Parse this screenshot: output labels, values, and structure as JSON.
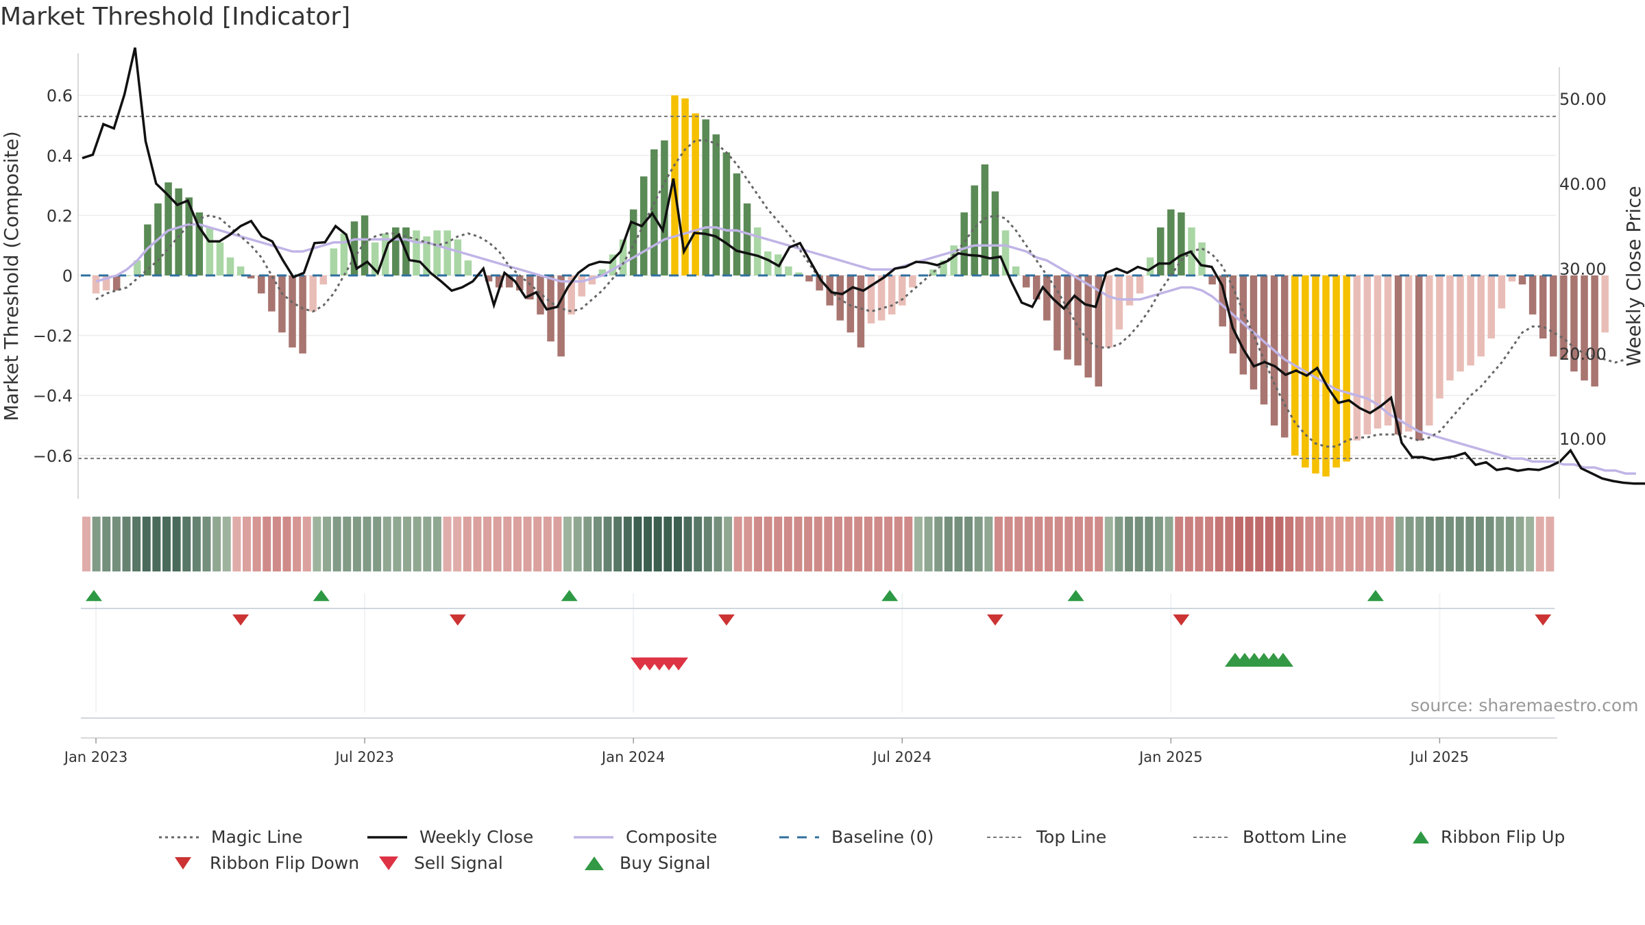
{
  "title": "Market Threshold [Indicator]",
  "source_note": "source: sharemaestro.com",
  "chart_data": {
    "type": "bar",
    "title": "Market Threshold [Indicator]",
    "ylabel_left": "Market Threshold (Composite)",
    "ylabel_right": "Weekly Close Price",
    "ylim_left": [
      -0.74,
      0.74
    ],
    "ylim_right": [
      3.5,
      55.0
    ],
    "left_ticks": [
      0.6,
      0.4,
      0.2,
      0,
      -0.2,
      -0.4,
      -0.6
    ],
    "left_tick_labels": [
      "0.6",
      "0.4",
      "0.2",
      "0",
      "−0.2",
      "−0.4",
      "−0.6"
    ],
    "right_ticks": [
      50,
      40,
      30,
      20,
      10
    ],
    "right_tick_labels": [
      "50.00",
      "40.00",
      "30.00",
      "20.00",
      "10.00"
    ],
    "x_tick_labels": [
      "Jan 2023",
      "Jul 2023",
      "Jan 2024",
      "Jul 2024",
      "Jan 2025",
      "Jul 2025"
    ],
    "x_tick_weeks": [
      0,
      26,
      52,
      78,
      104,
      130
    ],
    "x_range_weeks": [
      -1.5,
      141
    ],
    "top_line": 0.53,
    "bottom_line": -0.61,
    "baseline": 0,
    "composite_bars": [
      -0.06,
      -0.05,
      -0.05,
      0.0,
      0.05,
      0.17,
      0.24,
      0.31,
      0.29,
      0.26,
      0.21,
      0.16,
      0.11,
      0.06,
      0.03,
      -0.01,
      -0.06,
      -0.12,
      -0.19,
      -0.24,
      -0.26,
      -0.12,
      -0.03,
      0.09,
      0.14,
      0.18,
      0.2,
      0.11,
      0.14,
      0.16,
      0.16,
      0.15,
      0.13,
      0.15,
      0.15,
      0.12,
      0.05,
      0.0,
      -0.02,
      -0.04,
      -0.04,
      -0.05,
      -0.08,
      -0.13,
      -0.22,
      -0.27,
      -0.13,
      -0.07,
      -0.03,
      0.02,
      0.07,
      0.12,
      0.22,
      0.33,
      0.42,
      0.45,
      0.6,
      0.59,
      0.54,
      0.52,
      0.47,
      0.41,
      0.34,
      0.24,
      0.16,
      0.08,
      0.07,
      0.03,
      0.01,
      -0.02,
      -0.05,
      -0.1,
      -0.15,
      -0.19,
      -0.24,
      -0.16,
      -0.15,
      -0.13,
      -0.1,
      -0.04,
      0.0,
      0.02,
      0.05,
      0.1,
      0.21,
      0.3,
      0.37,
      0.28,
      0.15,
      0.03,
      -0.04,
      -0.08,
      -0.15,
      -0.25,
      -0.28,
      -0.3,
      -0.34,
      -0.37,
      -0.24,
      -0.18,
      -0.1,
      -0.06,
      0.06,
      0.16,
      0.22,
      0.21,
      0.16,
      0.11,
      -0.03,
      -0.17,
      -0.26,
      -0.33,
      -0.38,
      -0.43,
      -0.5,
      -0.54,
      -0.6,
      -0.64,
      -0.66,
      -0.67,
      -0.64,
      -0.62,
      -0.55,
      -0.53,
      -0.51,
      -0.5,
      -0.53,
      -0.52,
      -0.55,
      -0.5,
      -0.41,
      -0.35,
      -0.32,
      -0.3,
      -0.27,
      -0.21,
      -0.11,
      -0.02,
      -0.03,
      -0.13,
      -0.21,
      -0.27,
      -0.28,
      -0.32,
      -0.35,
      -0.37,
      -0.19
    ],
    "composite_line": [
      -0.02,
      -0.01,
      0.0,
      0.02,
      0.05,
      0.09,
      0.12,
      0.15,
      0.16,
      0.17,
      0.17,
      0.16,
      0.15,
      0.14,
      0.13,
      0.12,
      0.11,
      0.1,
      0.09,
      0.08,
      0.08,
      0.09,
      0.1,
      0.11,
      0.11,
      0.12,
      0.12,
      0.12,
      0.12,
      0.12,
      0.12,
      0.11,
      0.11,
      0.1,
      0.09,
      0.08,
      0.07,
      0.06,
      0.05,
      0.04,
      0.03,
      0.02,
      0.01,
      0.0,
      -0.01,
      -0.02,
      -0.02,
      -0.02,
      -0.01,
      0.0,
      0.02,
      0.04,
      0.06,
      0.08,
      0.1,
      0.12,
      0.13,
      0.14,
      0.15,
      0.16,
      0.16,
      0.15,
      0.15,
      0.14,
      0.13,
      0.12,
      0.11,
      0.1,
      0.09,
      0.08,
      0.07,
      0.06,
      0.05,
      0.04,
      0.03,
      0.02,
      0.02,
      0.02,
      0.03,
      0.04,
      0.05,
      0.06,
      0.07,
      0.08,
      0.09,
      0.1,
      0.1,
      0.1,
      0.1,
      0.09,
      0.08,
      0.06,
      0.05,
      0.03,
      0.01,
      -0.01,
      -0.03,
      -0.05,
      -0.07,
      -0.08,
      -0.08,
      -0.08,
      -0.07,
      -0.06,
      -0.05,
      -0.04,
      -0.04,
      -0.05,
      -0.07,
      -0.1,
      -0.13,
      -0.16,
      -0.19,
      -0.22,
      -0.25,
      -0.28,
      -0.3,
      -0.32,
      -0.34,
      -0.36,
      -0.38,
      -0.39,
      -0.4,
      -0.41,
      -0.43,
      -0.46,
      -0.48,
      -0.5,
      -0.52,
      -0.53,
      -0.54,
      -0.55,
      -0.56,
      -0.57,
      -0.58,
      -0.59,
      -0.6,
      -0.61,
      -0.61,
      -0.62,
      -0.62,
      -0.62,
      -0.63,
      -0.63,
      -0.64,
      -0.64,
      -0.65,
      -0.65,
      -0.66,
      -0.66
    ],
    "magic_line": [
      -0.08,
      -0.06,
      -0.05,
      -0.04,
      -0.01,
      0.02,
      0.05,
      0.09,
      0.13,
      0.17,
      0.19,
      0.2,
      0.19,
      0.16,
      0.13,
      0.1,
      0.06,
      0.0,
      -0.06,
      -0.09,
      -0.11,
      -0.12,
      -0.1,
      -0.06,
      0.0,
      0.06,
      0.11,
      0.13,
      0.14,
      0.14,
      0.13,
      0.12,
      0.11,
      0.1,
      0.11,
      0.13,
      0.14,
      0.13,
      0.11,
      0.08,
      0.03,
      0.0,
      -0.03,
      -0.06,
      -0.09,
      -0.11,
      -0.12,
      -0.11,
      -0.08,
      -0.05,
      -0.01,
      0.04,
      0.1,
      0.17,
      0.24,
      0.31,
      0.37,
      0.42,
      0.45,
      0.45,
      0.44,
      0.41,
      0.37,
      0.32,
      0.27,
      0.22,
      0.18,
      0.14,
      0.09,
      0.04,
      -0.01,
      -0.05,
      -0.08,
      -0.1,
      -0.11,
      -0.12,
      -0.11,
      -0.1,
      -0.08,
      -0.05,
      -0.02,
      0.01,
      0.04,
      0.07,
      0.11,
      0.16,
      0.19,
      0.2,
      0.19,
      0.15,
      0.1,
      0.05,
      0.0,
      -0.05,
      -0.11,
      -0.17,
      -0.22,
      -0.24,
      -0.24,
      -0.23,
      -0.2,
      -0.16,
      -0.11,
      -0.05,
      0.0,
      0.05,
      0.08,
      0.09,
      0.07,
      0.03,
      -0.04,
      -0.12,
      -0.2,
      -0.28,
      -0.36,
      -0.43,
      -0.49,
      -0.53,
      -0.56,
      -0.57,
      -0.57,
      -0.55,
      -0.54,
      -0.54,
      -0.53,
      -0.53,
      -0.53,
      -0.54,
      -0.55,
      -0.54,
      -0.52,
      -0.48,
      -0.44,
      -0.4,
      -0.37,
      -0.33,
      -0.29,
      -0.24,
      -0.19,
      -0.17,
      -0.17,
      -0.19,
      -0.21,
      -0.24,
      -0.26,
      -0.27,
      -0.28,
      -0.29,
      -0.28
    ],
    "weekly_close": [
      43,
      43.4,
      47,
      46.5,
      50.5,
      56,
      45,
      40,
      38.8,
      37.5,
      38,
      35,
      33.2,
      33.2,
      34,
      35,
      35.6,
      33.8,
      33.2,
      31,
      29,
      29.5,
      33,
      33.1,
      35,
      34,
      30,
      30.8,
      29.5,
      33,
      34,
      31,
      30.8,
      29.5,
      28.5,
      27.4,
      27.8,
      28.5,
      30,
      25.7,
      29.5,
      28.5,
      26.6,
      27.2,
      25.2,
      25.5,
      27.8,
      29.5,
      30.4,
      30.8,
      30.7,
      32,
      35.5,
      35,
      36.5,
      34.5,
      40.6,
      32,
      34.2,
      34.1,
      33.8,
      33,
      32.1,
      31.8,
      31.5,
      31,
      30.3,
      32.5,
      33,
      30.8,
      28.6,
      27.2,
      27,
      27.8,
      27.4,
      28.2,
      29,
      30,
      30.2,
      30.8,
      30.7,
      30.4,
      30.9,
      31.8,
      31.6,
      31.5,
      31.2,
      31.4,
      28.5,
      26,
      25.5,
      27.8,
      26.4,
      25.3,
      26.8,
      25.8,
      25.5,
      29.5,
      30,
      29.5,
      30.2,
      29.8,
      30.6,
      30.6,
      31.5,
      32,
      30.4,
      30.2,
      28,
      23,
      20.5,
      18.5,
      19,
      18.5,
      17.5,
      18,
      17.4,
      18.3,
      16,
      14.2,
      14.5,
      13.6,
      13,
      13.8,
      14.8,
      9.5,
      7.8,
      7.8,
      7.5,
      7.7,
      7.9,
      8.3,
      6.9,
      7.2,
      6.3,
      6.5,
      6.2,
      6.4,
      6.3,
      6.7,
      7.3,
      8.6,
      6.5,
      5.9,
      5.3,
      5.0,
      4.8,
      4.7,
      4.7,
      4.4,
      4.8,
      5.9
    ],
    "ribbon": [
      -0.3,
      0.5,
      0.6,
      0.6,
      0.7,
      0.8,
      0.9,
      0.9,
      0.9,
      0.9,
      0.8,
      0.7,
      0.6,
      0.4,
      0.3,
      -0.3,
      -0.4,
      -0.5,
      -0.6,
      -0.6,
      -0.6,
      -0.5,
      -0.4,
      0.3,
      0.4,
      0.5,
      0.5,
      0.5,
      0.5,
      0.5,
      0.4,
      0.4,
      0.4,
      0.4,
      0.4,
      0.4,
      -0.3,
      -0.3,
      -0.4,
      -0.4,
      -0.4,
      -0.4,
      -0.4,
      -0.4,
      -0.4,
      -0.4,
      -0.4,
      -0.4,
      0.3,
      0.4,
      0.5,
      0.6,
      0.7,
      0.8,
      0.9,
      1,
      1,
      1,
      1,
      1,
      0.9,
      0.8,
      0.7,
      0.6,
      0.4,
      -0.5,
      -0.5,
      -0.6,
      -0.6,
      -0.6,
      -0.6,
      -0.6,
      -0.6,
      -0.6,
      -0.6,
      -0.6,
      -0.6,
      -0.6,
      -0.6,
      -0.6,
      -0.6,
      -0.6,
      -0.6,
      0.3,
      0.4,
      0.5,
      0.6,
      0.6,
      0.6,
      0.5,
      0.4,
      -0.6,
      -0.6,
      -0.6,
      -0.6,
      -0.6,
      -0.6,
      -0.6,
      -0.6,
      -0.6,
      -0.6,
      -0.6,
      0.3,
      0.5,
      0.6,
      0.6,
      0.6,
      0.5,
      0.4,
      -0.7,
      -0.7,
      -0.7,
      -0.7,
      -0.8,
      -0.8,
      -0.9,
      -0.9,
      -0.9,
      -0.9,
      -0.9,
      -0.8,
      -0.7,
      -0.6,
      -0.6,
      -0.5,
      -0.5,
      -0.5,
      -0.5,
      -0.5,
      -0.5,
      -0.5,
      0.4,
      0.5,
      0.5,
      0.6,
      0.6,
      0.6,
      0.6,
      0.6,
      0.6,
      0.6,
      0.5,
      0.5,
      0.4,
      0.3,
      -0.3,
      -0.3
    ],
    "ribbon_flip_up_weeks": [
      0,
      22,
      46,
      77,
      95,
      124
    ],
    "ribbon_flip_down_weeks": [
      14,
      35,
      61,
      87,
      105,
      140
    ],
    "sell_signal_weeks": [
      51,
      52,
      53,
      54,
      55
    ],
    "buy_signal_weeks": [
      109,
      110,
      111,
      112,
      113,
      114
    ],
    "legend": [
      "Magic Line",
      "Weekly Close",
      "Composite",
      "Baseline (0)",
      "Top Line",
      "Bottom Line",
      "Ribbon Flip Up",
      "Ribbon Flip Down",
      "Sell Signal",
      "Buy Signal"
    ],
    "colors": {
      "green_dark": "#5a8a55",
      "green_light": "#a9d6a4",
      "red_dark": "#a87570",
      "red_light": "#e9bdb7",
      "extreme": "#f5c000",
      "composite": "#c0b4e6",
      "magic": "#666666",
      "close": "#111111",
      "baseline": "#2f6f9f",
      "threshold": "#777777",
      "flip_up": "#2e9944",
      "flip_down": "#cc3333",
      "sell": "#dd3344",
      "buy": "#339944"
    }
  }
}
